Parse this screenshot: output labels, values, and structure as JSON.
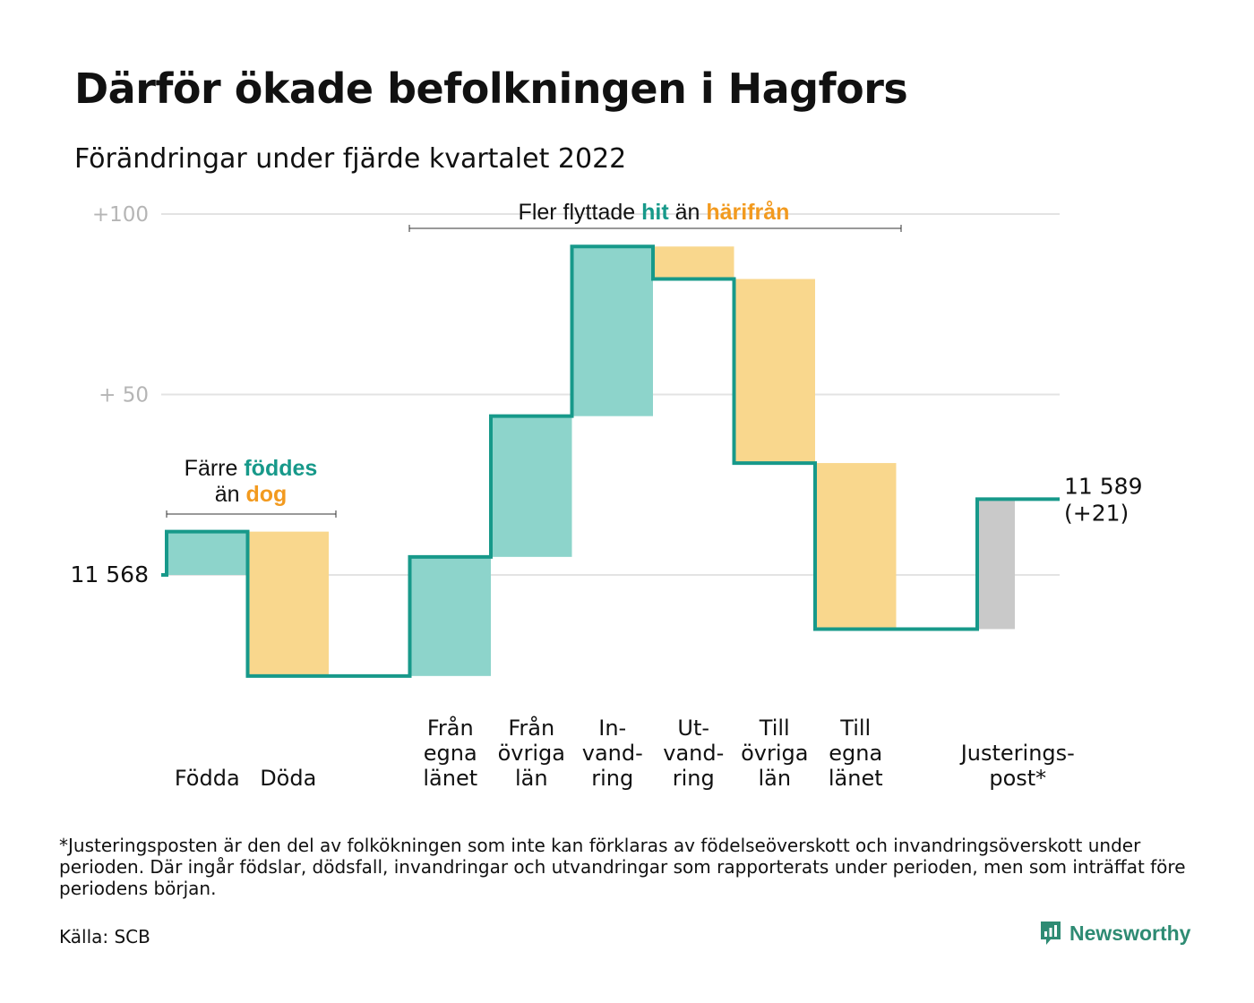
{
  "title": "Därför ökade befolkningen i Hagfors",
  "subtitle": "Förändringar under fjärde kvartalet 2022",
  "colors": {
    "increase": "#8dd4cb",
    "decrease": "#f9d78d",
    "adjustment": "#c9c9c9",
    "line": "#17998a",
    "grid": "#e3e3e3",
    "hit_text": "#17998a",
    "harifran_text": "#f29a1f"
  },
  "annotations": {
    "births": {
      "line1_pre": "Färre ",
      "line1_hi": "föddes",
      "line2_pre": "än ",
      "line2_hi": "dog"
    },
    "migration": {
      "pre": "Fler flyttade ",
      "hi1": "hit",
      "mid": " än ",
      "hi2": "härifrån"
    }
  },
  "footnote": "*Justeringsposten är den del av folkökningen som inte kan förklaras av födelseöverskott och invandringsöverskott under perioden. Där ingår födslar, dödsfall, invandringar och utvandringar som rapporterats under perioden, men som inträffat före periodens början.",
  "source": "Källa: SCB",
  "brand": "Newsworthy",
  "chart_data": {
    "type": "waterfall",
    "start_value": 11568,
    "start_label": "11 568",
    "end_label_line1": "11 589",
    "end_label_line2": "(+21)",
    "y_axis_ticks": [
      {
        "value": 0,
        "label": ""
      },
      {
        "value": 50,
        "label": "+ 50"
      },
      {
        "value": 100,
        "label": "+100"
      }
    ],
    "ylim": [
      -30,
      100
    ],
    "grid": true,
    "steps": [
      {
        "label_lines": [
          "Födda"
        ],
        "change": 12,
        "kind": "increase"
      },
      {
        "label_lines": [
          "Döda"
        ],
        "change": -40,
        "kind": "decrease"
      },
      {
        "label_lines": [],
        "change": 0,
        "kind": "gap"
      },
      {
        "label_lines": [
          "Från",
          "egna",
          "länet"
        ],
        "change": 33,
        "kind": "increase"
      },
      {
        "label_lines": [
          "Från",
          "övriga",
          "län"
        ],
        "change": 39,
        "kind": "increase"
      },
      {
        "label_lines": [
          "In-",
          "vand-",
          "ring"
        ],
        "change": 47,
        "kind": "increase"
      },
      {
        "label_lines": [
          "Ut-",
          "vand-",
          "ring"
        ],
        "change": -9,
        "kind": "decrease"
      },
      {
        "label_lines": [
          "Till",
          "övriga",
          "län"
        ],
        "change": -51,
        "kind": "decrease"
      },
      {
        "label_lines": [
          "Till",
          "egna",
          "länet"
        ],
        "change": -46,
        "kind": "decrease"
      },
      {
        "label_lines": [],
        "change": 0,
        "kind": "gap"
      },
      {
        "label_lines": [
          "Justerings-",
          "post*"
        ],
        "change": 36,
        "kind": "adjustment"
      }
    ]
  }
}
